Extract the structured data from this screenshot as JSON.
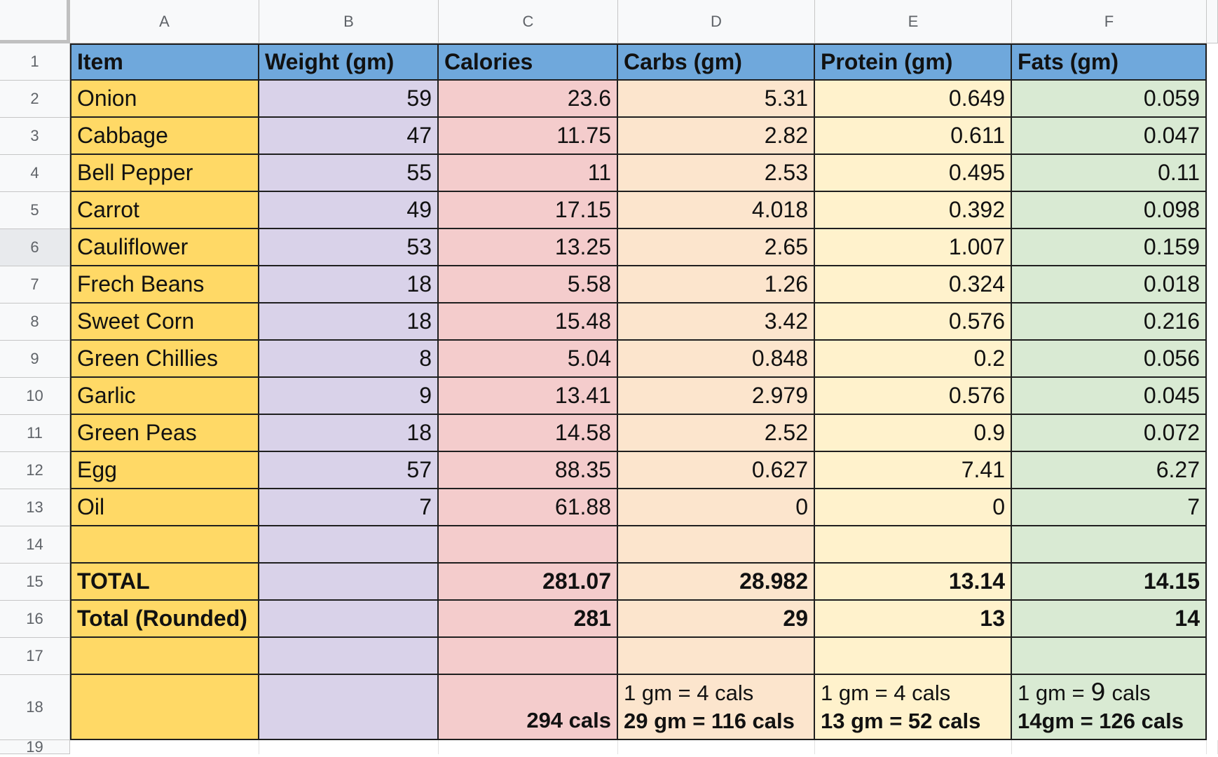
{
  "columns": [
    "A",
    "B",
    "C",
    "D",
    "E",
    "F"
  ],
  "row_numbers": [
    "1",
    "2",
    "3",
    "4",
    "5",
    "6",
    "7",
    "8",
    "9",
    "10",
    "11",
    "12",
    "13",
    "14",
    "15",
    "16",
    "17",
    "18",
    "19"
  ],
  "header": [
    "Item",
    "Weight (gm)",
    "Calories",
    "Carbs (gm)",
    "Protein (gm)",
    "Fats (gm)"
  ],
  "rows": [
    [
      "Onion",
      "59",
      "23.6",
      "5.31",
      "0.649",
      "0.059"
    ],
    [
      "Cabbage",
      "47",
      "11.75",
      "2.82",
      "0.611",
      "0.047"
    ],
    [
      "Bell Pepper",
      "55",
      "11",
      "2.53",
      "0.495",
      "0.11"
    ],
    [
      "Carrot",
      "49",
      "17.15",
      "4.018",
      "0.392",
      "0.098"
    ],
    [
      "Cauliflower",
      "53",
      "13.25",
      "2.65",
      "1.007",
      "0.159"
    ],
    [
      "Frech Beans",
      "18",
      "5.58",
      "1.26",
      "0.324",
      "0.018"
    ],
    [
      "Sweet Corn",
      "18",
      "15.48",
      "3.42",
      "0.576",
      "0.216"
    ],
    [
      "Green Chillies",
      "8",
      "5.04",
      "0.848",
      "0.2",
      "0.056"
    ],
    [
      "Garlic",
      "9",
      "13.41",
      "2.979",
      "0.576",
      "0.045"
    ],
    [
      "Green Peas",
      "18",
      "14.58",
      "2.52",
      "0.9",
      "0.072"
    ],
    [
      "Egg",
      "57",
      "88.35",
      "0.627",
      "7.41",
      "6.27"
    ],
    [
      "Oil",
      "7",
      "61.88",
      "0",
      "0",
      "7"
    ],
    [
      "",
      "",
      "",
      "",
      "",
      ""
    ]
  ],
  "total": [
    "TOTAL",
    "",
    "281.07",
    "28.982",
    "13.14",
    "14.15"
  ],
  "total_rounded": [
    "Total (Rounded)",
    "",
    "281",
    "29",
    "13",
    "14"
  ],
  "row17": [
    "",
    "",
    "",
    "",
    "",
    ""
  ],
  "row18": {
    "a": "",
    "b": "",
    "c": "294 cals",
    "d_line1": "1 gm = 4 cals",
    "d_line2": "29 gm = 116 cals",
    "e_line1": "1 gm = 4 cals",
    "e_line2": "13 gm = 52 cals",
    "f_line1_pre": "1 gm = ",
    "f_line1_nine": "9",
    "f_line1_post": " cals",
    "f_line2": "14gm = 126 cals"
  },
  "colors": {
    "header": "#6fa8dc",
    "col_a": "#ffd966",
    "col_b": "#d9d2e9",
    "col_c": "#f4cccc",
    "col_d": "#fce5cd",
    "col_e": "#fff2cc",
    "col_f": "#d9ead3"
  }
}
